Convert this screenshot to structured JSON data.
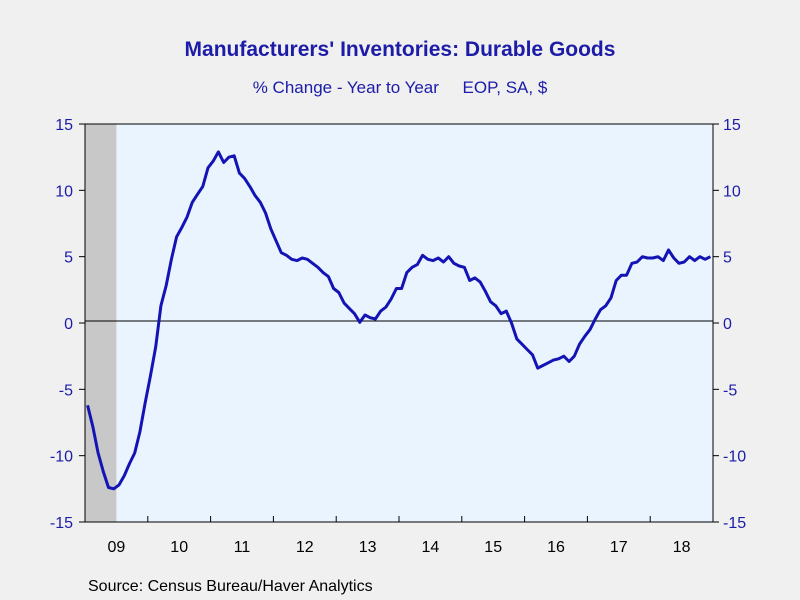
{
  "title": "Manufacturers' Inventories: Durable Goods",
  "subtitle": "% Change - Year to Year     EOP, SA, $",
  "source": "Source:  Census Bureau/Haver Analytics",
  "colors": {
    "title": "#1c1ca8",
    "line": "#1414b4",
    "plot_bg": "#eaf4ff",
    "recession": "#c8c8c8",
    "page_bg": "#f0f0f0"
  },
  "chart_data": {
    "type": "line",
    "title": "Manufacturers' Inventories: Durable Goods",
    "subtitle": "% Change - Year to Year     EOP, SA, $",
    "ylim": [
      -15,
      15
    ],
    "y_ticks": [
      15,
      10,
      5,
      0,
      -5,
      -10,
      -15
    ],
    "x_ticks": [
      "09",
      "10",
      "11",
      "12",
      "13",
      "14",
      "15",
      "16",
      "17",
      "18"
    ],
    "x_range": [
      "2009-01",
      "2018-12"
    ],
    "recession_shading": [
      "2009-01",
      "2009-06"
    ],
    "zero_line": true,
    "grid": false,
    "series": [
      {
        "values": [
          -6.2,
          -7.8,
          -9.8,
          -11.2,
          -12.4,
          -12.5,
          -12.2,
          -11.5,
          -10.6,
          -9.8,
          -8.2,
          -6.0,
          -4.0,
          -1.8,
          1.3,
          2.8,
          4.8,
          6.5,
          7.2,
          8.0,
          9.1,
          9.7,
          10.3,
          11.7,
          12.2,
          12.9,
          12.1,
          12.5,
          12.6,
          11.3,
          10.9,
          10.3,
          9.6,
          9.1,
          8.3,
          7.1,
          6.2,
          5.3,
          5.1,
          4.8,
          4.7,
          4.9,
          4.8,
          4.5,
          4.2,
          3.8,
          3.5,
          2.6,
          2.3,
          1.5,
          1.1,
          0.7,
          0.05,
          0.6,
          0.4,
          0.3,
          0.9,
          1.2,
          1.8,
          2.6,
          2.6,
          3.8,
          4.2,
          4.4,
          5.1,
          4.8,
          4.7,
          4.9,
          4.6,
          5.0,
          4.5,
          4.3,
          4.2,
          3.2,
          3.4,
          3.1,
          2.4,
          1.6,
          1.3,
          0.7,
          0.9,
          0.0,
          -1.2,
          -1.6,
          -2.0,
          -2.4,
          -3.4,
          -3.2,
          -3.0,
          -2.8,
          -2.7,
          -2.5,
          -2.9,
          -2.5,
          -1.6,
          -1.0,
          -0.5,
          0.3,
          1.0,
          1.3,
          1.9,
          3.2,
          3.6,
          3.6,
          4.5,
          4.6,
          5.0,
          4.9,
          4.9,
          5.0,
          4.7,
          5.5,
          4.9,
          4.5,
          4.6,
          5.0,
          4.7,
          5.0,
          4.8,
          5.0
        ]
      }
    ]
  }
}
